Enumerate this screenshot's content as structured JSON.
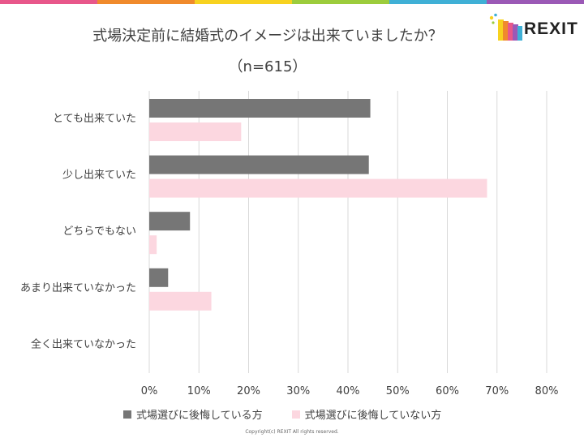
{
  "title": "式場決定前に結婚式のイメージは出来ていましたか？",
  "subtitle": "（n=615）",
  "logo": {
    "text": "REXIT"
  },
  "copyright": "Copyright(c) REXIT All rights reserved.",
  "colors": {
    "series1": "#767676",
    "series2": "#fcd7e0",
    "grid": "#d9d9d9",
    "axis_text": "#404040",
    "stripe": [
      "#e8578a",
      "#f08a2c",
      "#f7d21f",
      "#9ccc3c",
      "#3fb0d6",
      "#9b59b6"
    ]
  },
  "chart_data": {
    "type": "bar",
    "orientation": "horizontal",
    "title": "式場決定前に結婚式のイメージは出来ていましたか？",
    "subtitle": "（n=615）",
    "categories": [
      "とても出来ていた",
      "少し出来ていた",
      "どちらでもない",
      "あまり出来ていなかった",
      "全く出来ていなかった"
    ],
    "series": [
      {
        "name": "式場選びに後悔している方",
        "values": [
          44.5,
          44.2,
          8.2,
          3.8,
          0.0
        ]
      },
      {
        "name": "式場選びに後悔していない方",
        "values": [
          18.5,
          68.0,
          1.5,
          12.5,
          0.0
        ]
      }
    ],
    "x_ticks": [
      "0%",
      "10%",
      "20%",
      "30%",
      "40%",
      "50%",
      "60%",
      "70%",
      "80%"
    ],
    "xlim": [
      0,
      80
    ],
    "grid": true,
    "legend_position": "bottom"
  }
}
